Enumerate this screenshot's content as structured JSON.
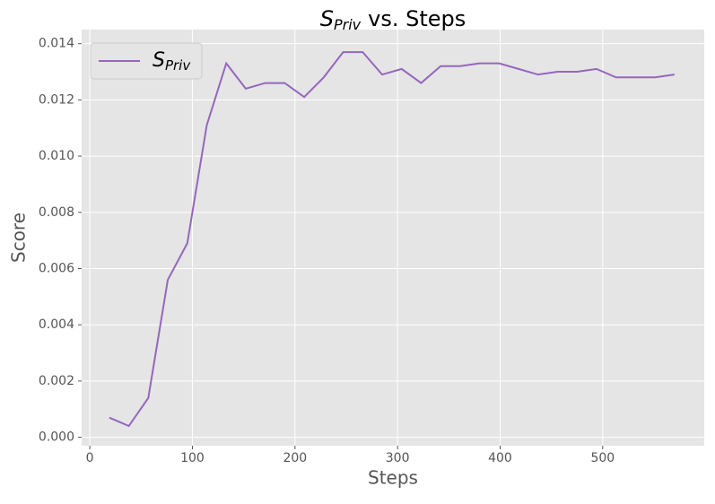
{
  "chart_data": {
    "type": "line",
    "title": {
      "symbol": "S",
      "subscript": "Priv",
      "text": "vs. Steps"
    },
    "xlabel": "Steps",
    "ylabel": "Score",
    "x": [
      19,
      38,
      57,
      76,
      95,
      114,
      133,
      152,
      171,
      190,
      209,
      228,
      247,
      266,
      285,
      304,
      323,
      342,
      361,
      380,
      399,
      418,
      437,
      456,
      475,
      494,
      513,
      532,
      551,
      570
    ],
    "series": [
      {
        "name": {
          "symbol": "S",
          "subscript": "Priv"
        },
        "color": "#9467bd",
        "values": [
          0.0007,
          0.0004,
          0.0014,
          0.0056,
          0.0069,
          0.0111,
          0.0133,
          0.0124,
          0.0126,
          0.0126,
          0.0121,
          0.0128,
          0.0137,
          0.0137,
          0.0129,
          0.0131,
          0.0126,
          0.0132,
          0.0132,
          0.0133,
          0.0133,
          0.0131,
          0.0129,
          0.013,
          0.013,
          0.0131,
          0.0128,
          0.0128,
          0.0128,
          0.0129
        ]
      }
    ],
    "xlim": [
      -8,
      599
    ],
    "xticks": [
      0,
      100,
      200,
      300,
      400,
      500
    ],
    "ylim": [
      -0.0003,
      0.0145
    ],
    "yticks": [
      {
        "value": 0,
        "label": "0.000"
      },
      {
        "value": 0.002,
        "label": "0.002"
      },
      {
        "value": 0.004,
        "label": "0.004"
      },
      {
        "value": 0.006,
        "label": "0.006"
      },
      {
        "value": 0.008,
        "label": "0.008"
      },
      {
        "value": 0.01,
        "label": "0.010"
      },
      {
        "value": 0.012,
        "label": "0.012"
      },
      {
        "value": 0.014,
        "label": "0.014"
      }
    ],
    "grid": true,
    "legend": "upper left"
  }
}
